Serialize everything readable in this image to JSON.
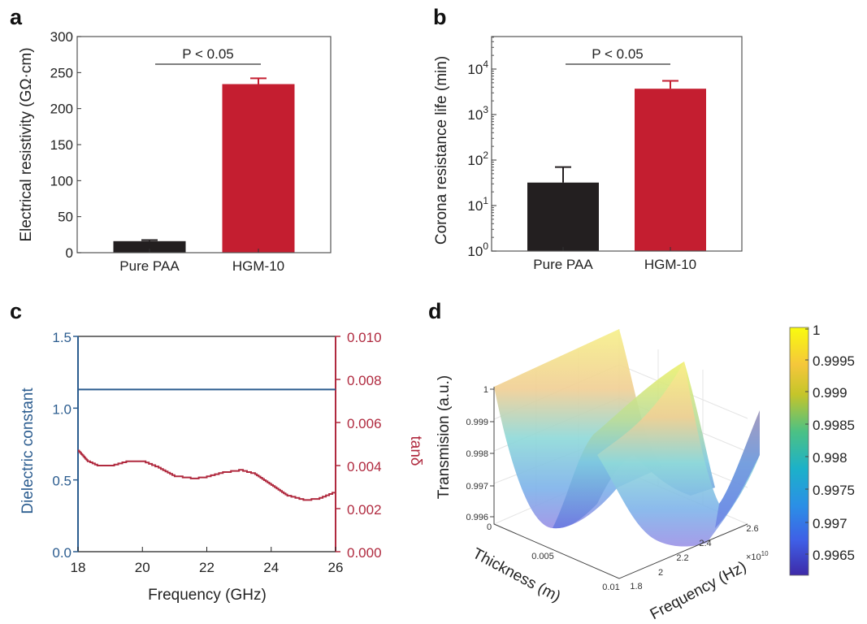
{
  "panels": {
    "a": "a",
    "b": "b",
    "c": "c",
    "d": "d"
  },
  "chart_data": [
    {
      "panel": "a",
      "type": "bar",
      "categories": [
        "Pure PAA",
        "HGM-10"
      ],
      "values": [
        16,
        234
      ],
      "error_upper": [
        17.5,
        242
      ],
      "colors": [
        "#231f20",
        "#c41e30"
      ],
      "xlabel": "",
      "ylabel": "Electrical resistivity (GΩ·cm)",
      "ylim": [
        0,
        300
      ],
      "yticks": [
        "0",
        "50",
        "100",
        "150",
        "200",
        "250",
        "300"
      ],
      "annotation": "P < 0.05"
    },
    {
      "panel": "b",
      "type": "bar",
      "yscale": "log",
      "categories": [
        "Pure PAA",
        "HGM-10"
      ],
      "values": [
        32,
        3700
      ],
      "error_upper": [
        70,
        5500
      ],
      "colors": [
        "#231f20",
        "#c41e30"
      ],
      "xlabel": "",
      "ylabel": "Corona resistance life (min)",
      "ylim": [
        1,
        50000
      ],
      "yticks": [
        {
          "base": "10",
          "exp": "0"
        },
        {
          "base": "10",
          "exp": "1"
        },
        {
          "base": "10",
          "exp": "2"
        },
        {
          "base": "10",
          "exp": "3"
        },
        {
          "base": "10",
          "exp": "4"
        }
      ],
      "annotation": "P < 0.05"
    },
    {
      "panel": "c",
      "type": "line",
      "x": [
        18,
        18.3,
        18.6,
        19,
        19.5,
        20,
        20.5,
        21,
        21.5,
        22,
        22.5,
        23,
        23.5,
        24,
        24.5,
        25,
        25.5,
        26
      ],
      "series": [
        {
          "name": "Dielectric constant",
          "axis": "left",
          "color": "#2b5c8f",
          "values": [
            1.13,
            1.13,
            1.13,
            1.13,
            1.13,
            1.13,
            1.13,
            1.13,
            1.13,
            1.13,
            1.13,
            1.13,
            1.13,
            1.13,
            1.13,
            1.13,
            1.13,
            1.13
          ]
        },
        {
          "name": "tanδ",
          "axis": "right",
          "color": "#b02a3f",
          "values": [
            0.0047,
            0.0042,
            0.004,
            0.004,
            0.0042,
            0.0042,
            0.0039,
            0.0035,
            0.0034,
            0.0035,
            0.0037,
            0.0038,
            0.0036,
            0.0031,
            0.0026,
            0.0024,
            0.0025,
            0.0028
          ]
        }
      ],
      "xlabel": "Frequency (GHz)",
      "xlim": [
        18,
        26
      ],
      "xticks": [
        "18",
        "20",
        "22",
        "24",
        "26"
      ],
      "ylabel_left": "Dielectric constant",
      "ylim_left": [
        0,
        1.5
      ],
      "yticks_left": [
        "0.0",
        "0.5",
        "1.0",
        "1.5"
      ],
      "ylabel_right": "tanδ",
      "ylim_right": [
        0,
        0.01
      ],
      "yticks_right": [
        "0.000",
        "0.002",
        "0.004",
        "0.006",
        "0.008",
        "0.010"
      ]
    },
    {
      "panel": "d",
      "type": "surface",
      "zlabel": "Transmision (a.u.)",
      "xlabel": "Thickness (m)",
      "ylabel": "Frequency (Hz)",
      "zlim": [
        0.996,
        1
      ],
      "zticks": [
        "0.996",
        "0.997",
        "0.998",
        "0.999",
        "1"
      ],
      "xticks": [
        "0",
        "0.005",
        "0.01"
      ],
      "yticks": [
        "1.8",
        "2",
        "2.2",
        "2.4",
        "2.6"
      ],
      "y_multiplier_base": "×10",
      "y_multiplier_exp": "10",
      "colorbar_ticks": [
        "1",
        "0.9995",
        "0.999",
        "0.9985",
        "0.998",
        "0.9975",
        "0.997",
        "0.9965"
      ],
      "colormap": [
        "#f9fb0e",
        "#fbbc3d",
        "#b8c82a",
        "#3fbf8a",
        "#1cb3c8",
        "#2a8ae6",
        "#3d5ee8",
        "#3e26a8"
      ]
    }
  ]
}
